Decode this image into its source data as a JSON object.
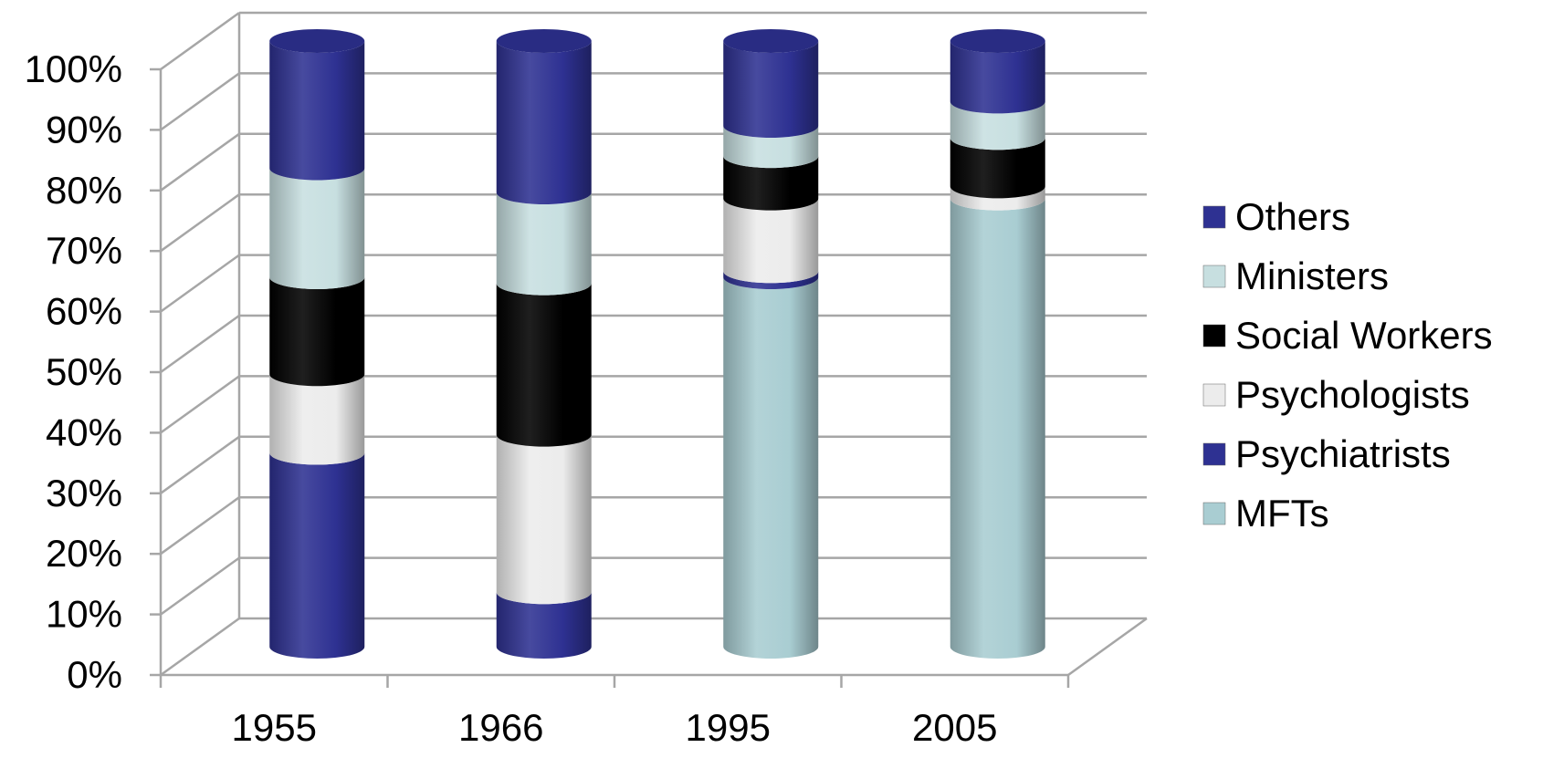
{
  "chart_data": {
    "type": "bar",
    "stacked": true,
    "normalized": true,
    "style": "3d-cylinder",
    "categories": [
      "1955",
      "1966",
      "1995",
      "2005"
    ],
    "series": [
      {
        "name": "MFTs",
        "color": "#a9cdd2",
        "values": [
          0,
          0,
          61,
          74
        ]
      },
      {
        "name": "Psychiatrists",
        "color": "#2e3192",
        "values": [
          32,
          9,
          1,
          0
        ]
      },
      {
        "name": "Psychologists",
        "color": "#ececec",
        "values": [
          13,
          26,
          12,
          2
        ]
      },
      {
        "name": "Social Workers",
        "color": "#000000",
        "values": [
          16,
          25,
          7,
          8
        ]
      },
      {
        "name": "Ministers",
        "color": "#c7dfe0",
        "values": [
          18,
          15,
          5,
          6
        ]
      },
      {
        "name": "Others",
        "color": "#2e3192",
        "values": [
          21,
          25,
          14,
          10
        ]
      }
    ],
    "yticks": [
      "0%",
      "10%",
      "20%",
      "30%",
      "40%",
      "50%",
      "60%",
      "70%",
      "80%",
      "90%",
      "100%"
    ],
    "ylim": [
      0,
      100
    ],
    "grid": true,
    "legend_position": "right",
    "title": "",
    "xlabel": "",
    "ylabel": ""
  }
}
